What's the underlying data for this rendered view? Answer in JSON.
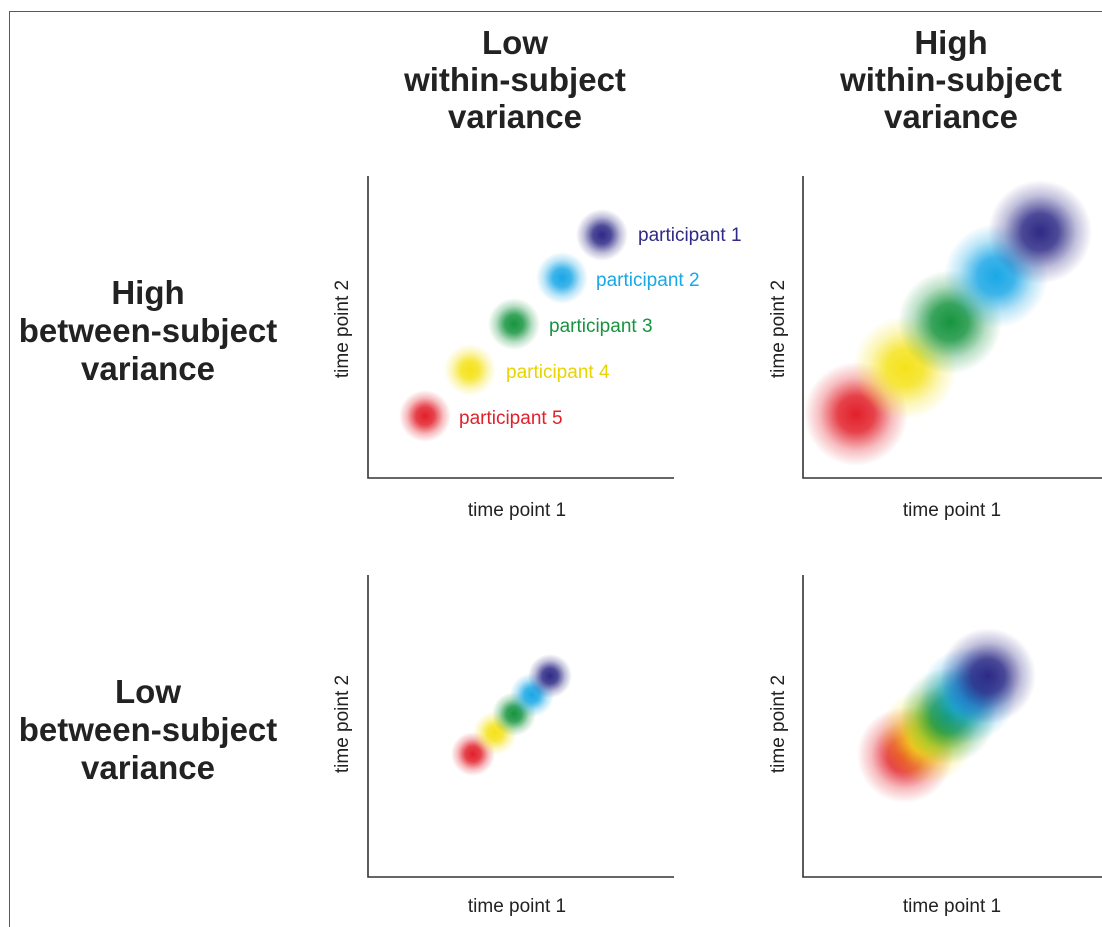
{
  "columns": [
    {
      "line1": "Low",
      "line2": "within-subject",
      "line3": "variance"
    },
    {
      "line1": "High",
      "line2": "within-subject",
      "line3": "variance"
    }
  ],
  "rows": [
    {
      "line1": "High",
      "line2": "between-subject",
      "line3": "variance"
    },
    {
      "line1": "Low",
      "line2": "between-subject",
      "line3": "variance"
    }
  ],
  "axes": {
    "x": "time point 1",
    "y": "time point 2"
  },
  "participants": [
    {
      "label": "participant 1",
      "color": "#2e2a86"
    },
    {
      "label": "participant 2",
      "color": "#1aa7e6"
    },
    {
      "label": "participant 3",
      "color": "#16943f"
    },
    {
      "label": "participant 4",
      "color": "#f5e21a"
    },
    {
      "label": "participant 5",
      "color": "#e2202a"
    }
  ],
  "chart_data": [
    {
      "type": "scatter",
      "panel": "high-between-low-within",
      "xlabel": "time point 1",
      "ylabel": "time point 2",
      "series": [
        {
          "name": "participant 1"
        },
        {
          "name": "participant 2"
        },
        {
          "name": "participant 3"
        },
        {
          "name": "participant 4"
        },
        {
          "name": "participant 5"
        }
      ]
    },
    {
      "type": "scatter",
      "panel": "high-between-high-within",
      "xlabel": "time point 1",
      "ylabel": "time point 2"
    },
    {
      "type": "scatter",
      "panel": "low-between-low-within",
      "xlabel": "time point 1",
      "ylabel": "time point 2"
    },
    {
      "type": "scatter",
      "panel": "low-between-high-within",
      "xlabel": "time point 1",
      "ylabel": "time point 2"
    }
  ]
}
